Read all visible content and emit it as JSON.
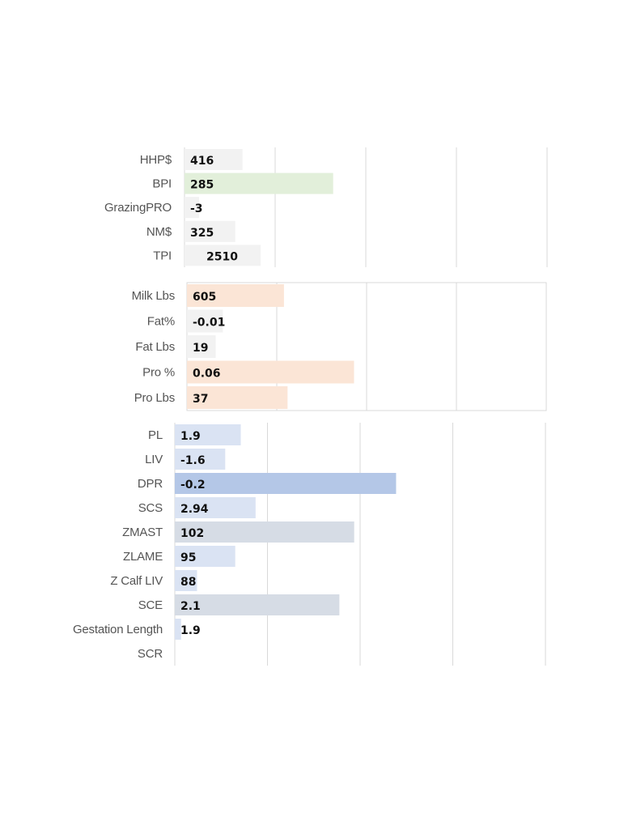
{
  "chart_data": [
    {
      "type": "bar",
      "orientation": "horizontal",
      "categories": [
        "HHP$",
        "BPI",
        "GrazingPRO",
        "NM$",
        "TPI"
      ],
      "values": [
        416,
        285,
        -3,
        325,
        2510
      ],
      "value_labels": [
        "416",
        "285",
        "-3",
        "325",
        "2510"
      ],
      "bar_fraction": [
        0.16,
        0.41,
        0.04,
        0.14,
        0.21
      ],
      "colors": [
        "#f2f2f2",
        "#e2efda",
        "#f2f2f2",
        "#f2f2f2",
        "#f2f2f2"
      ],
      "grid": true
    },
    {
      "type": "bar",
      "orientation": "horizontal",
      "categories": [
        "Milk Lbs",
        "Fat%",
        "Fat Lbs",
        "Pro %",
        "Pro Lbs"
      ],
      "values": [
        605,
        -0.01,
        19,
        0.06,
        37
      ],
      "value_labels": [
        "605",
        "-0.01",
        "19",
        "0.06",
        "37"
      ],
      "bar_fraction": [
        0.27,
        0.1,
        0.08,
        0.465,
        0.28
      ],
      "colors": [
        "#fbe5d6",
        "#f2f2f2",
        "#f2f2f2",
        "#fbe5d6",
        "#fbe5d6"
      ],
      "grid": true
    },
    {
      "type": "bar",
      "orientation": "horizontal",
      "categories": [
        "PL",
        "LIV",
        "DPR",
        "SCS",
        "ZMAST",
        "ZLAME",
        "Z Calf LIV",
        "SCE",
        "Gestation Length",
        "SCR"
      ],
      "values": [
        1.9,
        -1.6,
        -0.2,
        2.94,
        102,
        95,
        88,
        2.1,
        1.9,
        null
      ],
      "value_labels": [
        "1.9",
        "-1.6",
        "-0.2",
        "2.94",
        "102",
        "95",
        "88",
        "2.1",
        "1.9",
        ""
      ],
      "bar_fraction": [
        0.178,
        0.136,
        0.597,
        0.218,
        0.484,
        0.163,
        0.06,
        0.444,
        0.017,
        0
      ],
      "colors": [
        "#dae3f3",
        "#dae3f3",
        "#b4c7e7",
        "#dae3f3",
        "#d6dce5",
        "#dae3f3",
        "#dae3f3",
        "#d6dce5",
        "#dae3f3",
        "#dae3f3"
      ],
      "grid": true
    }
  ]
}
